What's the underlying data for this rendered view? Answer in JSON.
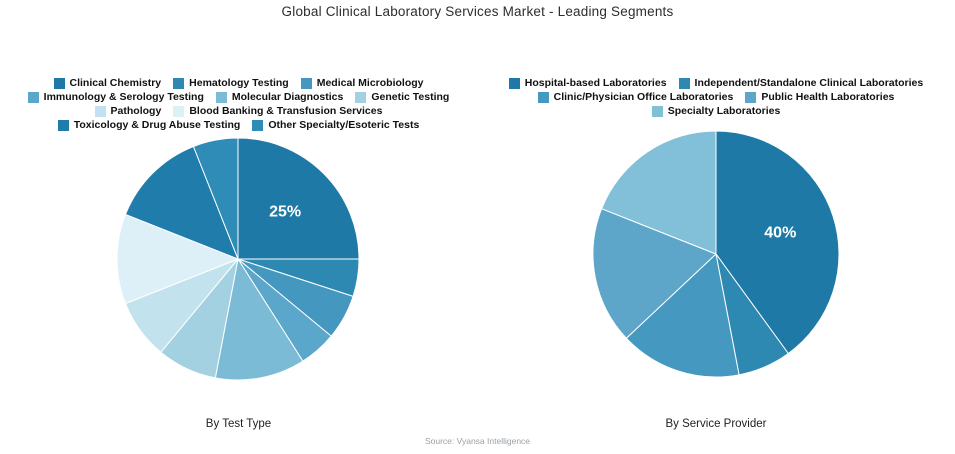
{
  "title": "Global Clinical Laboratory Services Market - Leading Segments",
  "source_note": "Source: Vyansa Intelligence",
  "chart_data": [
    {
      "type": "pie",
      "title": "By Test Type",
      "unit": "%",
      "direction": "clockwise",
      "start_angle": "12 o'clock",
      "legend_position": "top",
      "labels": [
        "Clinical Chemistry",
        "Hematology Testing",
        "Medical Microbiology",
        "Immunology & Serology Testing",
        "Molecular Diagnostics",
        "Genetic Testing",
        "Pathology",
        "Blood Banking & Transfusion Services",
        "Toxicology & Drug Abuse Testing",
        "Other Specialty/Esoteric Tests"
      ],
      "values": [
        25,
        5,
        6,
        5,
        12,
        8,
        8,
        12,
        13,
        6
      ],
      "colors": [
        "#1e79a7",
        "#2e89b2",
        "#4497bf",
        "#5ba7cb",
        "#7cbbd6",
        "#a3d1e2",
        "#c2e2ee",
        "#ddeff7",
        "#1f7cab",
        "#2e8cb7"
      ],
      "shown_slice_label": {
        "slice_index": 0,
        "text": "25%"
      },
      "legend_rows": [
        [
          0,
          1,
          2
        ],
        [
          3,
          4,
          5
        ],
        [
          6,
          7
        ],
        [
          8,
          9
        ]
      ]
    },
    {
      "type": "pie",
      "title": "By Service Provider",
      "unit": "%",
      "direction": "clockwise",
      "start_angle": "12 o'clock",
      "legend_position": "top",
      "labels": [
        "Hospital-based Laboratories",
        "Independent/Standalone Clinical Laboratories",
        "Clinic/Physician Office Laboratories",
        "Public Health Laboratories",
        "Specialty Laboratories"
      ],
      "values": [
        40,
        7,
        16,
        18,
        19
      ],
      "colors": [
        "#1e79a7",
        "#2e89b2",
        "#4598c0",
        "#5da6ca",
        "#82bfd8"
      ],
      "shown_slice_label": {
        "slice_index": 0,
        "text": "40%"
      },
      "legend_rows": [
        [
          0,
          1
        ],
        [
          2,
          3
        ],
        [
          4
        ]
      ]
    }
  ]
}
